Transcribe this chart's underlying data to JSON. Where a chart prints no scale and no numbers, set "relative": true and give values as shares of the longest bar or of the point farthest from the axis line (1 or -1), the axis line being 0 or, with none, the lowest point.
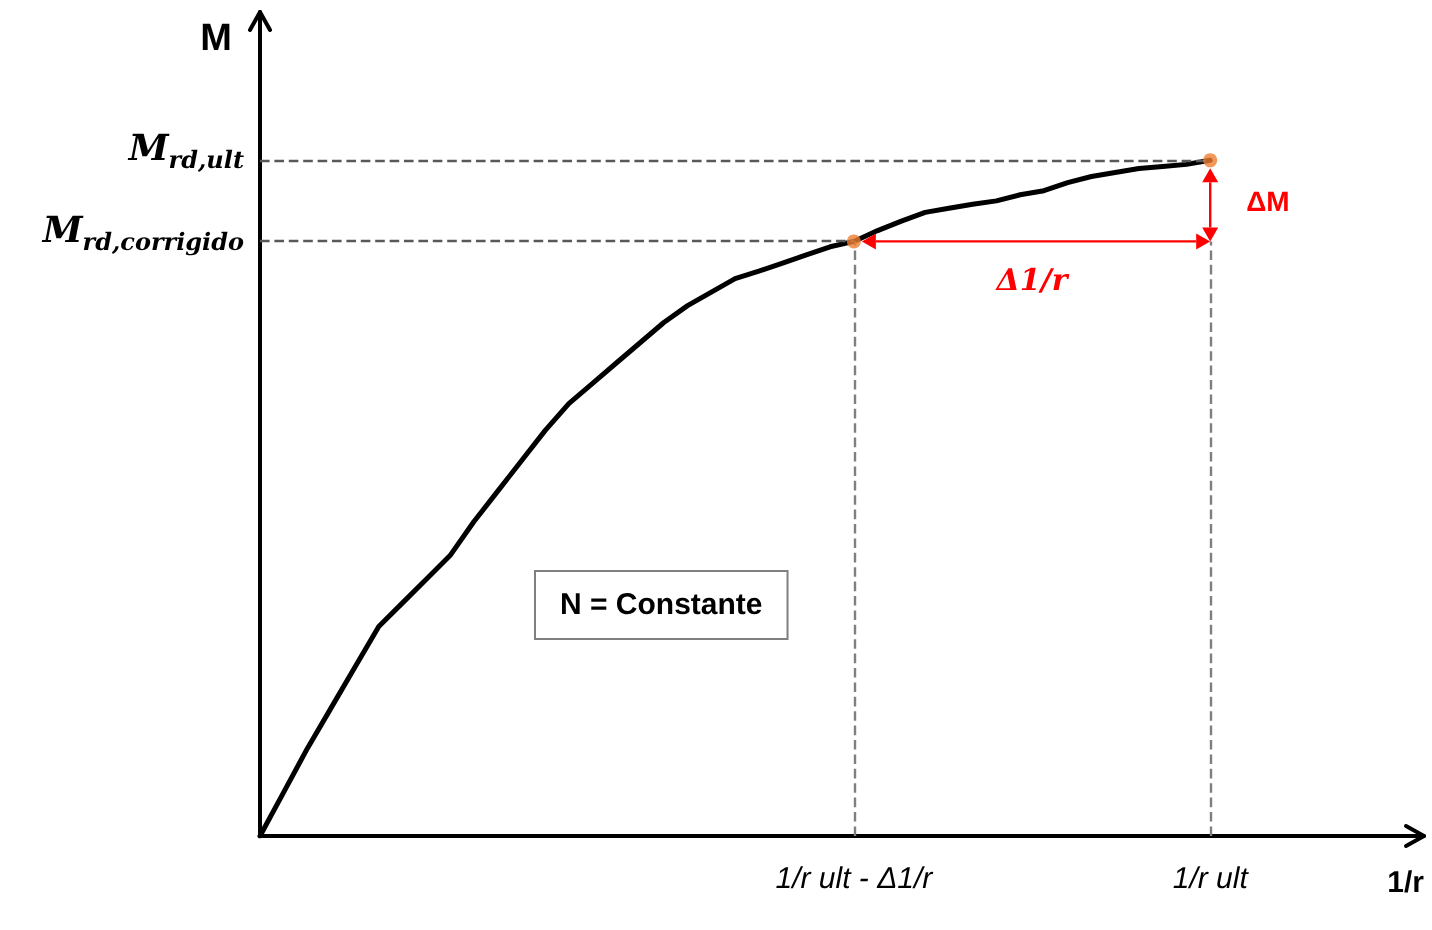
{
  "chart_data": {
    "type": "line",
    "relative": true,
    "xlabel": "1/r",
    "ylabel": "M",
    "categories": [
      null,
      null,
      null,
      null,
      null,
      null,
      null,
      null,
      null,
      null,
      null,
      null,
      null,
      null,
      null,
      null,
      null,
      null,
      null,
      null,
      null,
      null,
      null,
      null,
      null,
      "1/r ult - Δ1/r",
      null,
      null,
      null,
      null,
      null,
      null,
      null,
      null,
      null,
      null,
      null,
      null,
      null,
      null,
      "1/r ult",
      null,
      null,
      null,
      null,
      null,
      null,
      null,
      null,
      null
    ],
    "series": [
      {
        "color": "#000000",
        "values": [
          0,
          0.065,
          0.13,
          0.19,
          0.25,
          0.31,
          0.345,
          0.38,
          0.415,
          0.465,
          0.51,
          0.555,
          0.6,
          0.64,
          0.67,
          0.7,
          0.73,
          0.76,
          0.785,
          0.805,
          0.825,
          0.836,
          0.848,
          0.86,
          0.872,
          0.88,
          0.896,
          0.91,
          0.923,
          0.929,
          0.935,
          0.94,
          0.949,
          0.955,
          0.967,
          0.976,
          0.982,
          0.988,
          0.991,
          0.994,
          1,
          null,
          null,
          null,
          null,
          null,
          null,
          null,
          null,
          null
        ]
      },
      {
        "type": "scatter",
        "color": "#ed7d31",
        "marker": "circle",
        "x": [
          "1/r ult - Δ1/r",
          "1/r ult"
        ],
        "values": [
          0.88,
          1
        ]
      }
    ],
    "ref_lines": [
      {
        "axis": "y",
        "value": 1,
        "label": "M$_{rd,ult}$",
        "color": "#595959",
        "line_style": "dashed"
      },
      {
        "axis": "y",
        "value": 0.88,
        "label": "M$_{rd,corrigido}$",
        "color": "#595959",
        "line_style": "dashed"
      },
      {
        "axis": "x",
        "value": "1/r ult - Δ1/r",
        "color": "#7f7f7f",
        "line_style": "dashed"
      },
      {
        "axis": "x",
        "value": "1/r ult",
        "color": "#7f7f7f",
        "line_style": "dashed"
      }
    ],
    "annotations": [
      "Δ1/r",
      "ΔM",
      "N = Constante"
    ]
  }
}
